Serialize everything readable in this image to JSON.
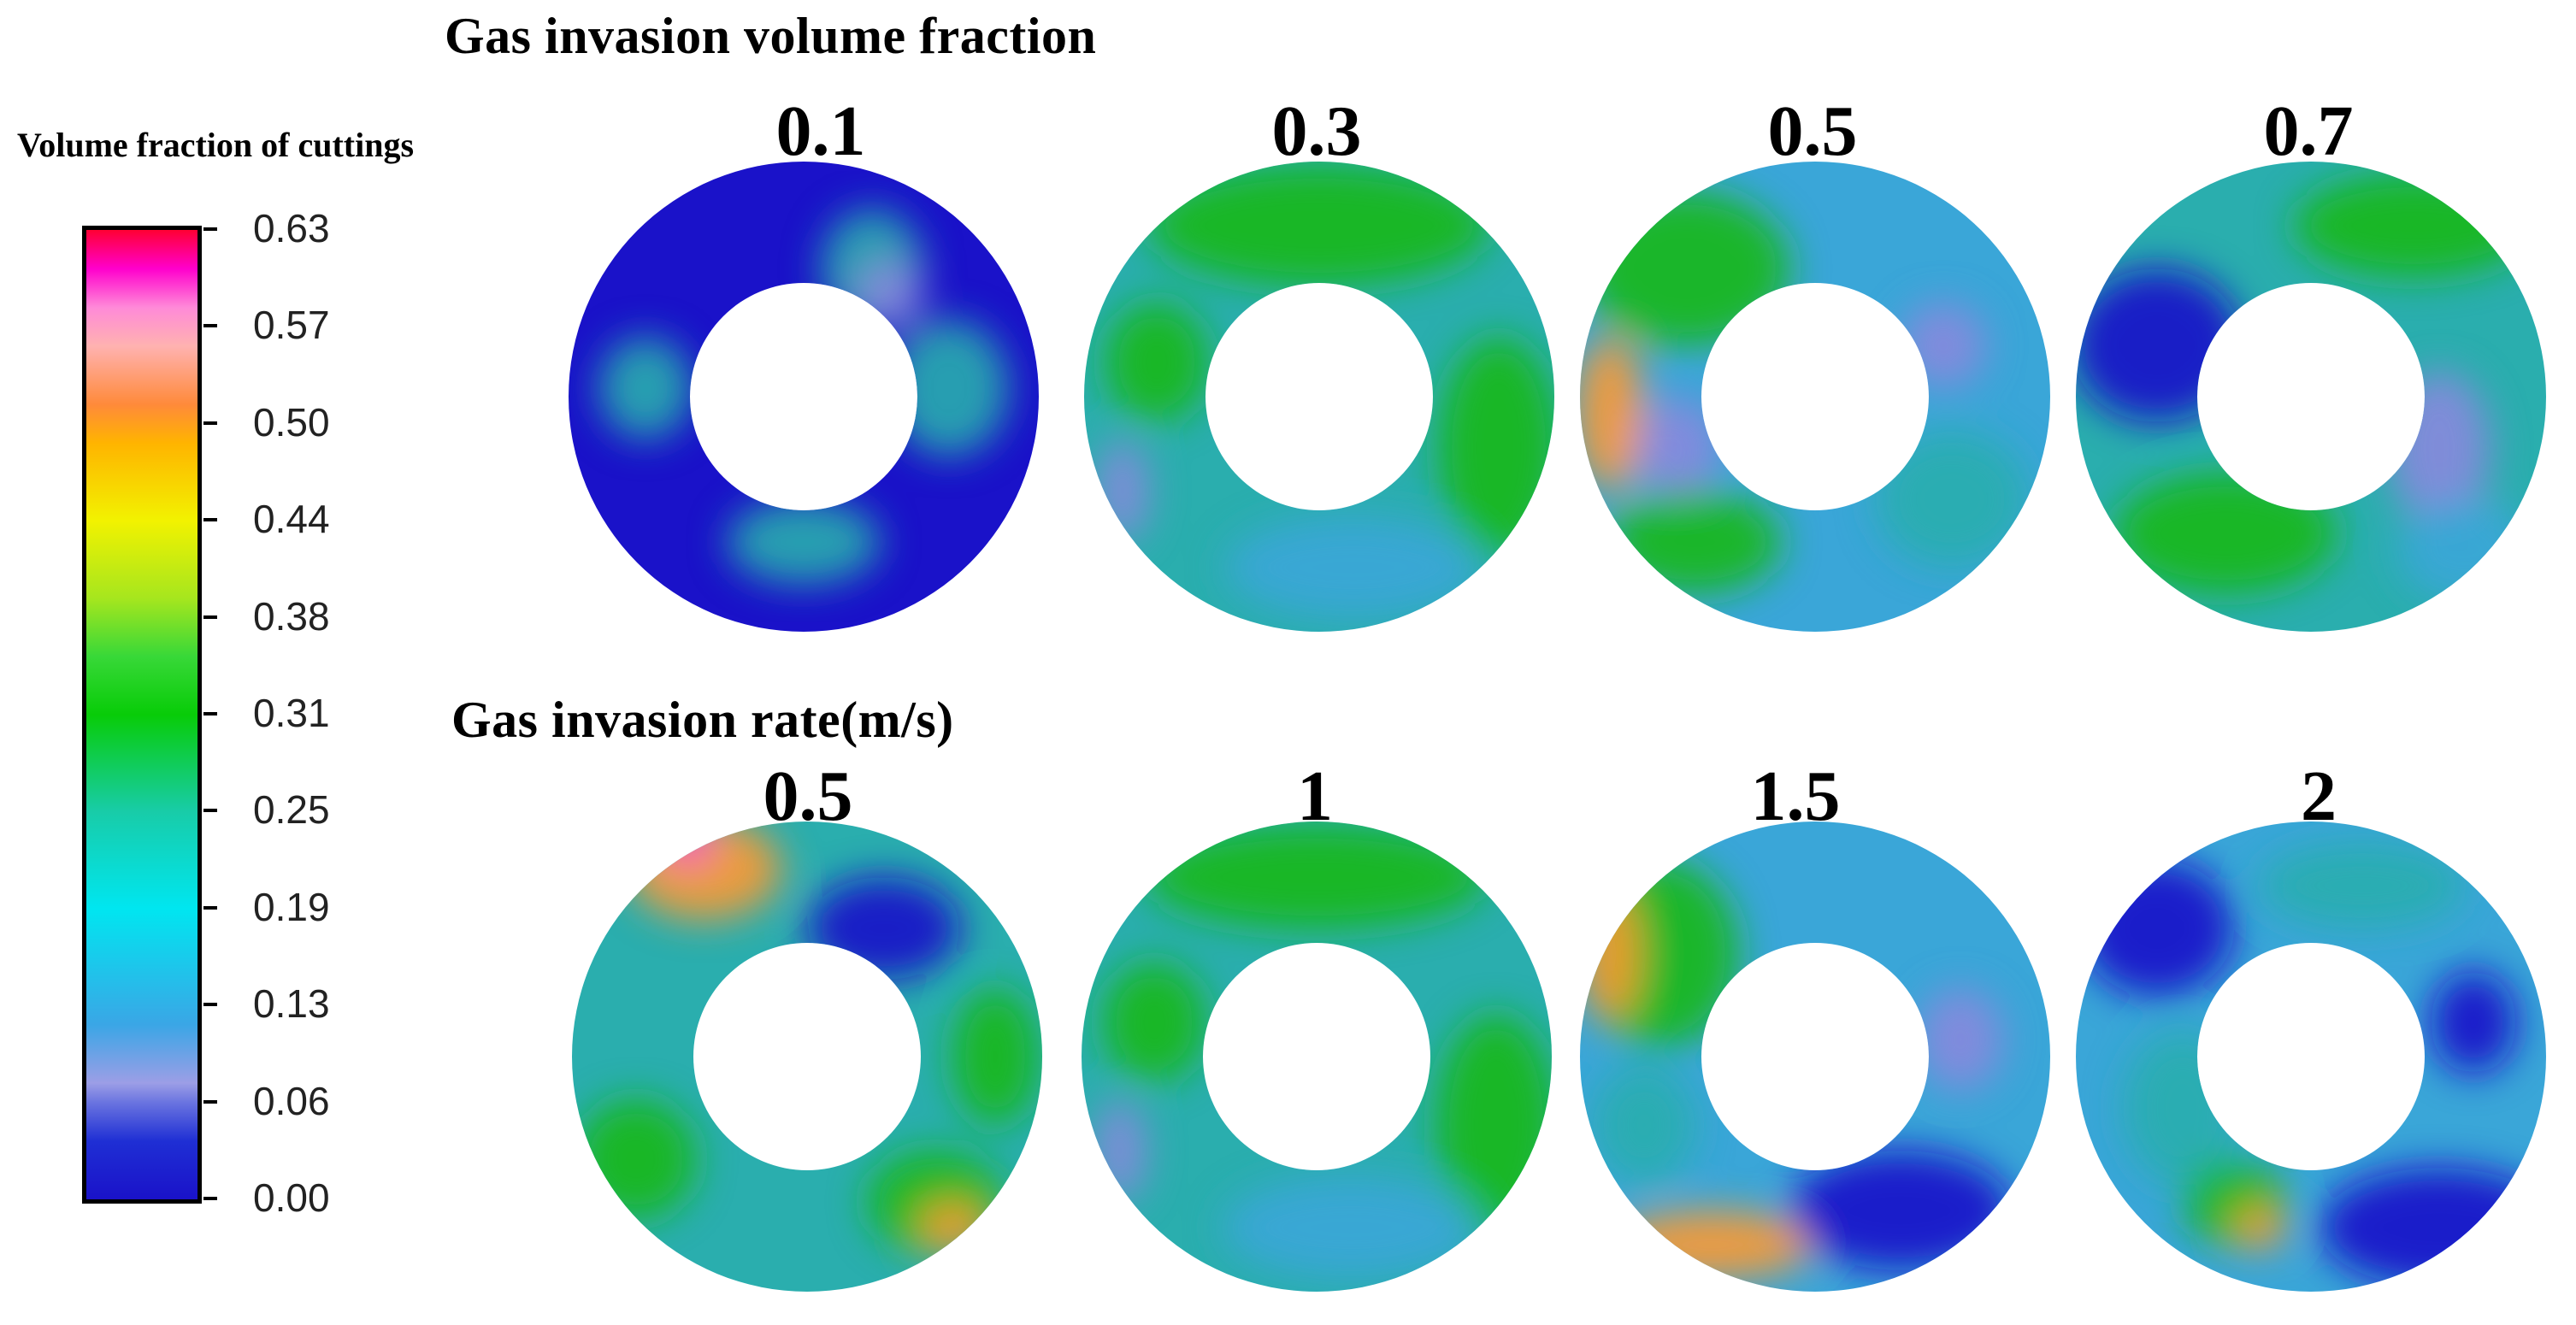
{
  "figure": {
    "top_section_title": "Gas invasion volume fraction",
    "bottom_section_title": "Gas invasion rate(m/s)",
    "top_labels": [
      "0.1",
      "0.3",
      "0.5",
      "0.7"
    ],
    "bottom_labels": [
      "0.5",
      "1",
      "1.5",
      "2"
    ]
  },
  "legend": {
    "title": "Volume fraction of cuttings",
    "ticks": [
      "0.63",
      "0.57",
      "0.50",
      "0.44",
      "0.38",
      "0.31",
      "0.25",
      "0.19",
      "0.13",
      "0.06",
      "0.00"
    ]
  },
  "colors": {
    "deep_blue": "#1a12c9",
    "teal": "#2aaeae",
    "cyan_blue": "#3aa6d8",
    "green": "#14b814",
    "lavender": "#8888dd",
    "orange": "#ff9a30",
    "magenta": "#ff44cc"
  }
}
